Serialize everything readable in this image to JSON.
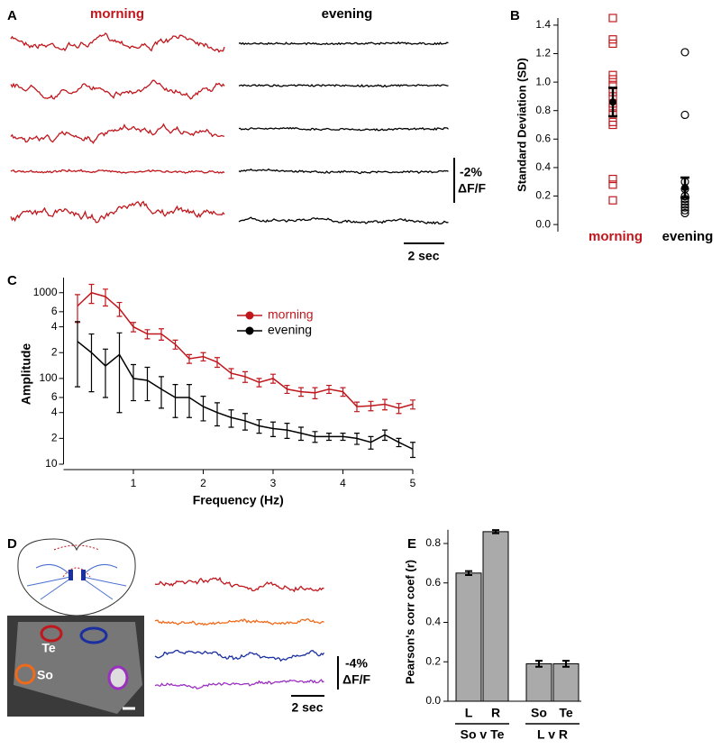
{
  "panel_labels": [
    "A",
    "B",
    "C",
    "D",
    "E"
  ],
  "panel_a": {
    "titles": [
      "morning",
      "evening"
    ],
    "scale_y": [
      "-2%",
      "ΔF/F"
    ],
    "scale_x": "2 sec"
  },
  "panel_d": {
    "roi_labels": [
      "Te",
      "So"
    ],
    "scale_y": [
      "-4%",
      "ΔF/F"
    ],
    "scale_x": "2 sec"
  },
  "chart_data": [
    {
      "type": "strip",
      "ylabel": "Standard Deviation (SD)",
      "categories": [
        "morning",
        "evening"
      ],
      "colors": [
        "#c0171d",
        "#000000"
      ],
      "points": [
        [
          1.45,
          1.3,
          1.27,
          1.05,
          1.02,
          0.98,
          0.93,
          0.9,
          0.85,
          0.82,
          0.78,
          0.72,
          0.7,
          0.32,
          0.28,
          0.17
        ],
        [
          1.21,
          0.77,
          0.3,
          0.25,
          0.2,
          0.18,
          0.16,
          0.14,
          0.12,
          0.1,
          0.08
        ]
      ],
      "means": [
        0.86,
        0.26
      ],
      "errors": [
        0.1,
        0.07
      ],
      "ylim": [
        -0.05,
        1.45
      ],
      "yticks": [
        {
          "value": 0,
          "label": "0.0"
        },
        0.2,
        0.4,
        0.6,
        0.8,
        {
          "value": 1,
          "label": "1.0"
        },
        1.2,
        1.4
      ]
    },
    {
      "type": "line",
      "xlabel": "Frequency (Hz)",
      "ylabel": "Amplitude",
      "log_y": true,
      "x": [
        0.2,
        0.4,
        0.6,
        0.8,
        1.0,
        1.2,
        1.4,
        1.6,
        1.8,
        2.0,
        2.2,
        2.4,
        2.6,
        2.8,
        3.0,
        3.2,
        3.4,
        3.6,
        3.8,
        4.0,
        4.2,
        4.4,
        4.6,
        4.8,
        5.0
      ],
      "series": [
        {
          "name": "morning",
          "color": "#c0171d",
          "values": [
            700,
            1000,
            900,
            650,
            400,
            330,
            330,
            250,
            170,
            180,
            155,
            115,
            105,
            90,
            100,
            75,
            70,
            68,
            75,
            70,
            47,
            48,
            50,
            45,
            50
          ],
          "errors": [
            250,
            250,
            200,
            120,
            50,
            40,
            50,
            30,
            20,
            20,
            20,
            15,
            15,
            10,
            12,
            8,
            8,
            10,
            8,
            8,
            6,
            6,
            7,
            6,
            6
          ]
        },
        {
          "name": "evening",
          "color": "#000000",
          "values": [
            270,
            200,
            140,
            190,
            100,
            95,
            75,
            60,
            60,
            47,
            40,
            35,
            32,
            28,
            26,
            25,
            23,
            21,
            21,
            21,
            20,
            18,
            22,
            18,
            15
          ],
          "errors": [
            190,
            130,
            80,
            150,
            45,
            40,
            30,
            25,
            25,
            15,
            12,
            8,
            7,
            5,
            5,
            5,
            4,
            3,
            2,
            2,
            3,
            3,
            3,
            2,
            3
          ]
        }
      ],
      "xlim": [
        0,
        5
      ],
      "xticks": [
        1,
        2,
        3,
        4,
        5
      ],
      "ylim": [
        10,
        1500
      ],
      "yticks": [
        10,
        {
          "value": 20,
          "label": "2"
        },
        {
          "value": 40,
          "label": "4"
        },
        {
          "value": 60,
          "label": "6"
        },
        100,
        {
          "value": 200,
          "label": "2"
        },
        {
          "value": 400,
          "label": "4"
        },
        {
          "value": 600,
          "label": "6"
        },
        1000
      ]
    },
    {
      "type": "bar",
      "ylabel": "Pearson's corr coef (r)",
      "color": "#aaaaaa",
      "categories": [
        "L",
        "R",
        "So",
        "Te"
      ],
      "values": [
        0.65,
        0.86,
        0.19,
        0.19
      ],
      "errors": [
        0.01,
        0.008,
        0.015,
        0.015
      ],
      "group_labels": [
        "So v Te",
        "L v R"
      ],
      "ylim": [
        0,
        0.87
      ],
      "yticks": [
        {
          "value": 0,
          "label": "0.0"
        },
        0.2,
        0.4,
        0.6,
        0.8
      ]
    }
  ]
}
